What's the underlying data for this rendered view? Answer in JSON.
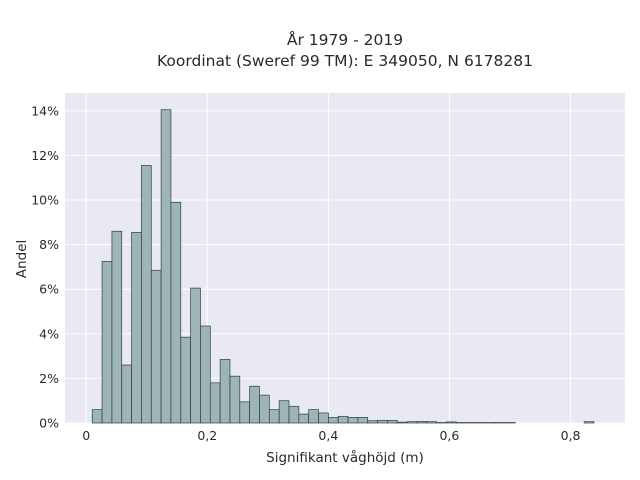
{
  "chart_data": {
    "type": "bar",
    "title": "År 1979 - 2019",
    "subtitle": "Koordinat (Sweref 99 TM): E 349050, N 6178281",
    "xlabel": "Signifikant våghöjd (m)",
    "ylabel": "Andel",
    "xlim": [
      -0.035,
      0.89
    ],
    "ylim": [
      0,
      14.8
    ],
    "xticks": [
      0,
      0.2,
      0.4,
      0.6,
      0.8
    ],
    "xtick_labels": [
      "0",
      "0,2",
      "0,4",
      "0,6",
      "0,8"
    ],
    "yticks": [
      0,
      2,
      4,
      6,
      8,
      10,
      12,
      14
    ],
    "ytick_labels": [
      "0%",
      "2%",
      "4%",
      "6%",
      "8%",
      "10%",
      "12%",
      "14%"
    ],
    "grid": true,
    "bin_width": 0.01625,
    "bin_starts": [
      0.01,
      0.02625,
      0.0425,
      0.05875,
      0.075,
      0.09125,
      0.1075,
      0.12375,
      0.14,
      0.15625,
      0.1725,
      0.18875,
      0.205,
      0.22125,
      0.2375,
      0.25375,
      0.27,
      0.28625,
      0.3025,
      0.31875,
      0.335,
      0.35125,
      0.3675,
      0.38375,
      0.4,
      0.41625,
      0.4325,
      0.44875,
      0.465,
      0.48125,
      0.4975,
      0.51375,
      0.53,
      0.54625,
      0.5625,
      0.57875,
      0.595,
      0.61125,
      0.6275,
      0.64375,
      0.66,
      0.67625,
      0.6925,
      0.70875,
      0.725,
      0.74125,
      0.7575,
      0.77375,
      0.79,
      0.80625,
      0.8225
    ],
    "values": [
      0.6,
      7.25,
      8.6,
      2.6,
      8.55,
      11.55,
      6.85,
      14.05,
      9.9,
      3.85,
      6.05,
      4.35,
      1.8,
      2.85,
      2.1,
      0.95,
      1.65,
      1.25,
      0.6,
      1.0,
      0.75,
      0.4,
      0.6,
      0.45,
      0.25,
      0.3,
      0.25,
      0.25,
      0.1,
      0.12,
      0.12,
      0.04,
      0.06,
      0.07,
      0.06,
      0.02,
      0.05,
      0.02,
      0.02,
      0.02,
      0.02,
      0.02,
      0.02,
      0.0,
      0.0,
      0.0,
      0.0,
      0.0,
      0.0,
      0.0,
      0.06
    ],
    "colors": {
      "background": "#e9e9f1",
      "grid": "#ffffff",
      "bar_fill": "#9db5b5",
      "bar_edge": "#2f3f3f"
    }
  }
}
